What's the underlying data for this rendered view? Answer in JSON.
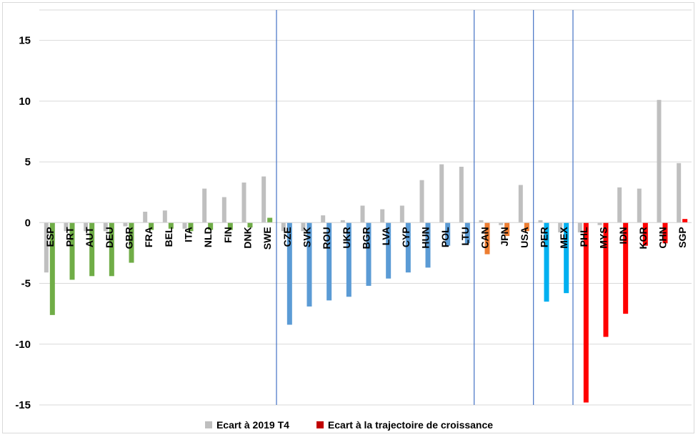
{
  "chart_data": {
    "type": "bar",
    "title": "",
    "xlabel": "",
    "ylabel": "",
    "ylim": [
      -15,
      17.5
    ],
    "yticks": [
      15,
      10,
      5,
      0,
      -5,
      -10,
      -15
    ],
    "grid": true,
    "legend_position": "bottom",
    "categories": [
      "ESP",
      "PRT",
      "AUT",
      "DEU",
      "GBR",
      "FRA",
      "BEL",
      "ITA",
      "NLD",
      "FIN",
      "DNK",
      "SWE",
      "CZE",
      "SVK",
      "ROU",
      "UKR",
      "BGR",
      "LVA",
      "CYP",
      "HUN",
      "POL",
      "LTU",
      "CAN",
      "JPN",
      "USA",
      "PER",
      "MEX",
      "PHL",
      "MYS",
      "IDN",
      "KOR",
      "CHN",
      "SGP"
    ],
    "group_separators_after": [
      "SWE",
      "LTU",
      "USA",
      "MEX"
    ],
    "series": [
      {
        "name": "Ecart à 2019 T4",
        "color": "#bfbfbf",
        "values": [
          -4.1,
          -0.7,
          -0.7,
          -0.7,
          -0.3,
          0.9,
          1.0,
          -0.5,
          2.8,
          2.1,
          3.3,
          3.8,
          -0.7,
          -0.7,
          0.6,
          0.2,
          1.4,
          1.1,
          1.4,
          3.5,
          4.8,
          4.6,
          0.2,
          -0.2,
          3.1,
          0.2,
          -0.8,
          -0.8,
          -0.2,
          2.9,
          2.8,
          10.1,
          4.9
        ]
      },
      {
        "name": "Ecart à la trajectoire de croissance",
        "values": [
          -7.6,
          -4.7,
          -4.4,
          -4.4,
          -3.3,
          -0.6,
          -0.5,
          -0.7,
          -0.6,
          -0.6,
          -0.4,
          0.4,
          -8.4,
          -6.9,
          -6.4,
          -6.1,
          -5.2,
          -4.6,
          -4.1,
          -3.7,
          -1.9,
          -1.7,
          -2.6,
          -1.1,
          -0.7,
          -6.5,
          -5.8,
          -14.8,
          -9.4,
          -7.5,
          -1.9,
          -1.7,
          0.3
        ],
        "colors": [
          "#70ad47",
          "#70ad47",
          "#70ad47",
          "#70ad47",
          "#70ad47",
          "#70ad47",
          "#70ad47",
          "#70ad47",
          "#70ad47",
          "#70ad47",
          "#70ad47",
          "#70ad47",
          "#5b9bd5",
          "#5b9bd5",
          "#5b9bd5",
          "#5b9bd5",
          "#5b9bd5",
          "#5b9bd5",
          "#5b9bd5",
          "#5b9bd5",
          "#5b9bd5",
          "#5b9bd5",
          "#ed7d31",
          "#ed7d31",
          "#ed7d31",
          "#00b0f0",
          "#00b0f0",
          "#ff0000",
          "#ff0000",
          "#ff0000",
          "#ff0000",
          "#ff0000",
          "#ff0000"
        ]
      }
    ],
    "legend_colors": [
      "#bfbfbf",
      "#c00000"
    ],
    "separator_color": "#4472c4",
    "grid_color": "#d9d9d9"
  }
}
